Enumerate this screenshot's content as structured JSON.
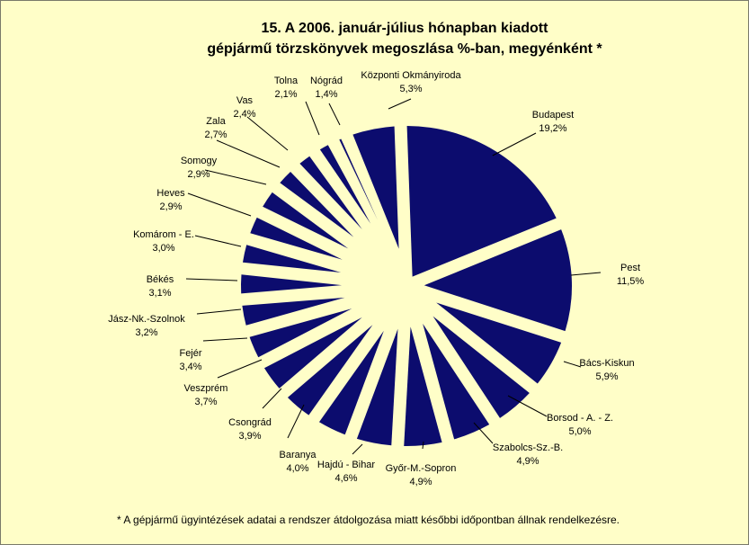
{
  "title_line1": "15. A  2006. január-július hónapban kiadott",
  "title_line2": "gépjármű törzskönyvek megoszlása %-ban, megyénként *",
  "footnote": "*  A gépjármű ügyintézések adatai a rendszer átdolgozása miatt későbbi időpontban állnak rendelkezésre.",
  "chart_data": {
    "type": "pie",
    "title": "15. A  2006. január-július hónapban kiadott gépjármű törzskönyvek megoszlása %-ban, megyénként *",
    "color": "#0c0c6e",
    "background": "#fffec8",
    "slices": [
      {
        "label": "Budapest",
        "value": 19.2,
        "value_label": "19,2%"
      },
      {
        "label": "Pest",
        "value": 11.5,
        "value_label": "11,5%"
      },
      {
        "label": "Bács-Kiskun",
        "value": 5.9,
        "value_label": "5,9%"
      },
      {
        "label": "Borsod - A. - Z.",
        "value": 5.0,
        "value_label": "5,0%"
      },
      {
        "label": "Szabolcs-Sz.-B.",
        "value": 4.9,
        "value_label": "4,9%"
      },
      {
        "label": "Győr-M.-Sopron",
        "value": 4.9,
        "value_label": "4,9%"
      },
      {
        "label": "Hajdú - Bihar",
        "value": 4.6,
        "value_label": "4,6%"
      },
      {
        "label": "Baranya",
        "value": 4.0,
        "value_label": "4,0%"
      },
      {
        "label": "Csongrád",
        "value": 3.9,
        "value_label": "3,9%"
      },
      {
        "label": "Veszprém",
        "value": 3.7,
        "value_label": "3,7%"
      },
      {
        "label": "Fejér",
        "value": 3.4,
        "value_label": "3,4%"
      },
      {
        "label": "Jász-Nk.-Szolnok",
        "value": 3.2,
        "value_label": "3,2%"
      },
      {
        "label": "Békés",
        "value": 3.1,
        "value_label": "3,1%"
      },
      {
        "label": "Komárom - E.",
        "value": 3.0,
        "value_label": "3,0%"
      },
      {
        "label": "Heves",
        "value": 2.9,
        "value_label": "2,9%"
      },
      {
        "label": "Somogy",
        "value": 2.9,
        "value_label": "2,9%"
      },
      {
        "label": "Zala",
        "value": 2.7,
        "value_label": "2,7%"
      },
      {
        "label": "Vas",
        "value": 2.4,
        "value_label": "2,4%"
      },
      {
        "label": "Tolna",
        "value": 2.1,
        "value_label": "2,1%"
      },
      {
        "label": "Nógrád",
        "value": 1.4,
        "value_label": "1,4%"
      },
      {
        "label": "Központi Okmányiroda",
        "value": 5.3,
        "value_label": "5,3%"
      }
    ]
  }
}
